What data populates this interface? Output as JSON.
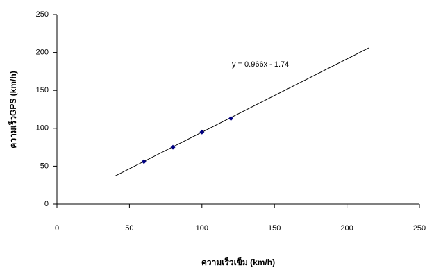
{
  "chart_data": {
    "type": "scatter",
    "x_label": "ความเร็วเข็ม (km/h)",
    "y_label": "ความเร็วGPS (km/h)",
    "series": [
      {
        "color": "#000080",
        "x": [
          60,
          80,
          100,
          120
        ],
        "values": [
          56,
          75,
          95,
          113
        ]
      }
    ],
    "trendline": {
      "slope": 0.966,
      "intercept": -1.74,
      "x_range": [
        40,
        215
      ],
      "label": "y = 0.966x - 1.74"
    },
    "xlim": [
      0,
      250
    ],
    "xticks": [
      0,
      50,
      100,
      150,
      200,
      250
    ],
    "ylim": [
      0,
      250
    ],
    "yticks": [
      0,
      50,
      100,
      150,
      200,
      250
    ],
    "grid": false
  }
}
